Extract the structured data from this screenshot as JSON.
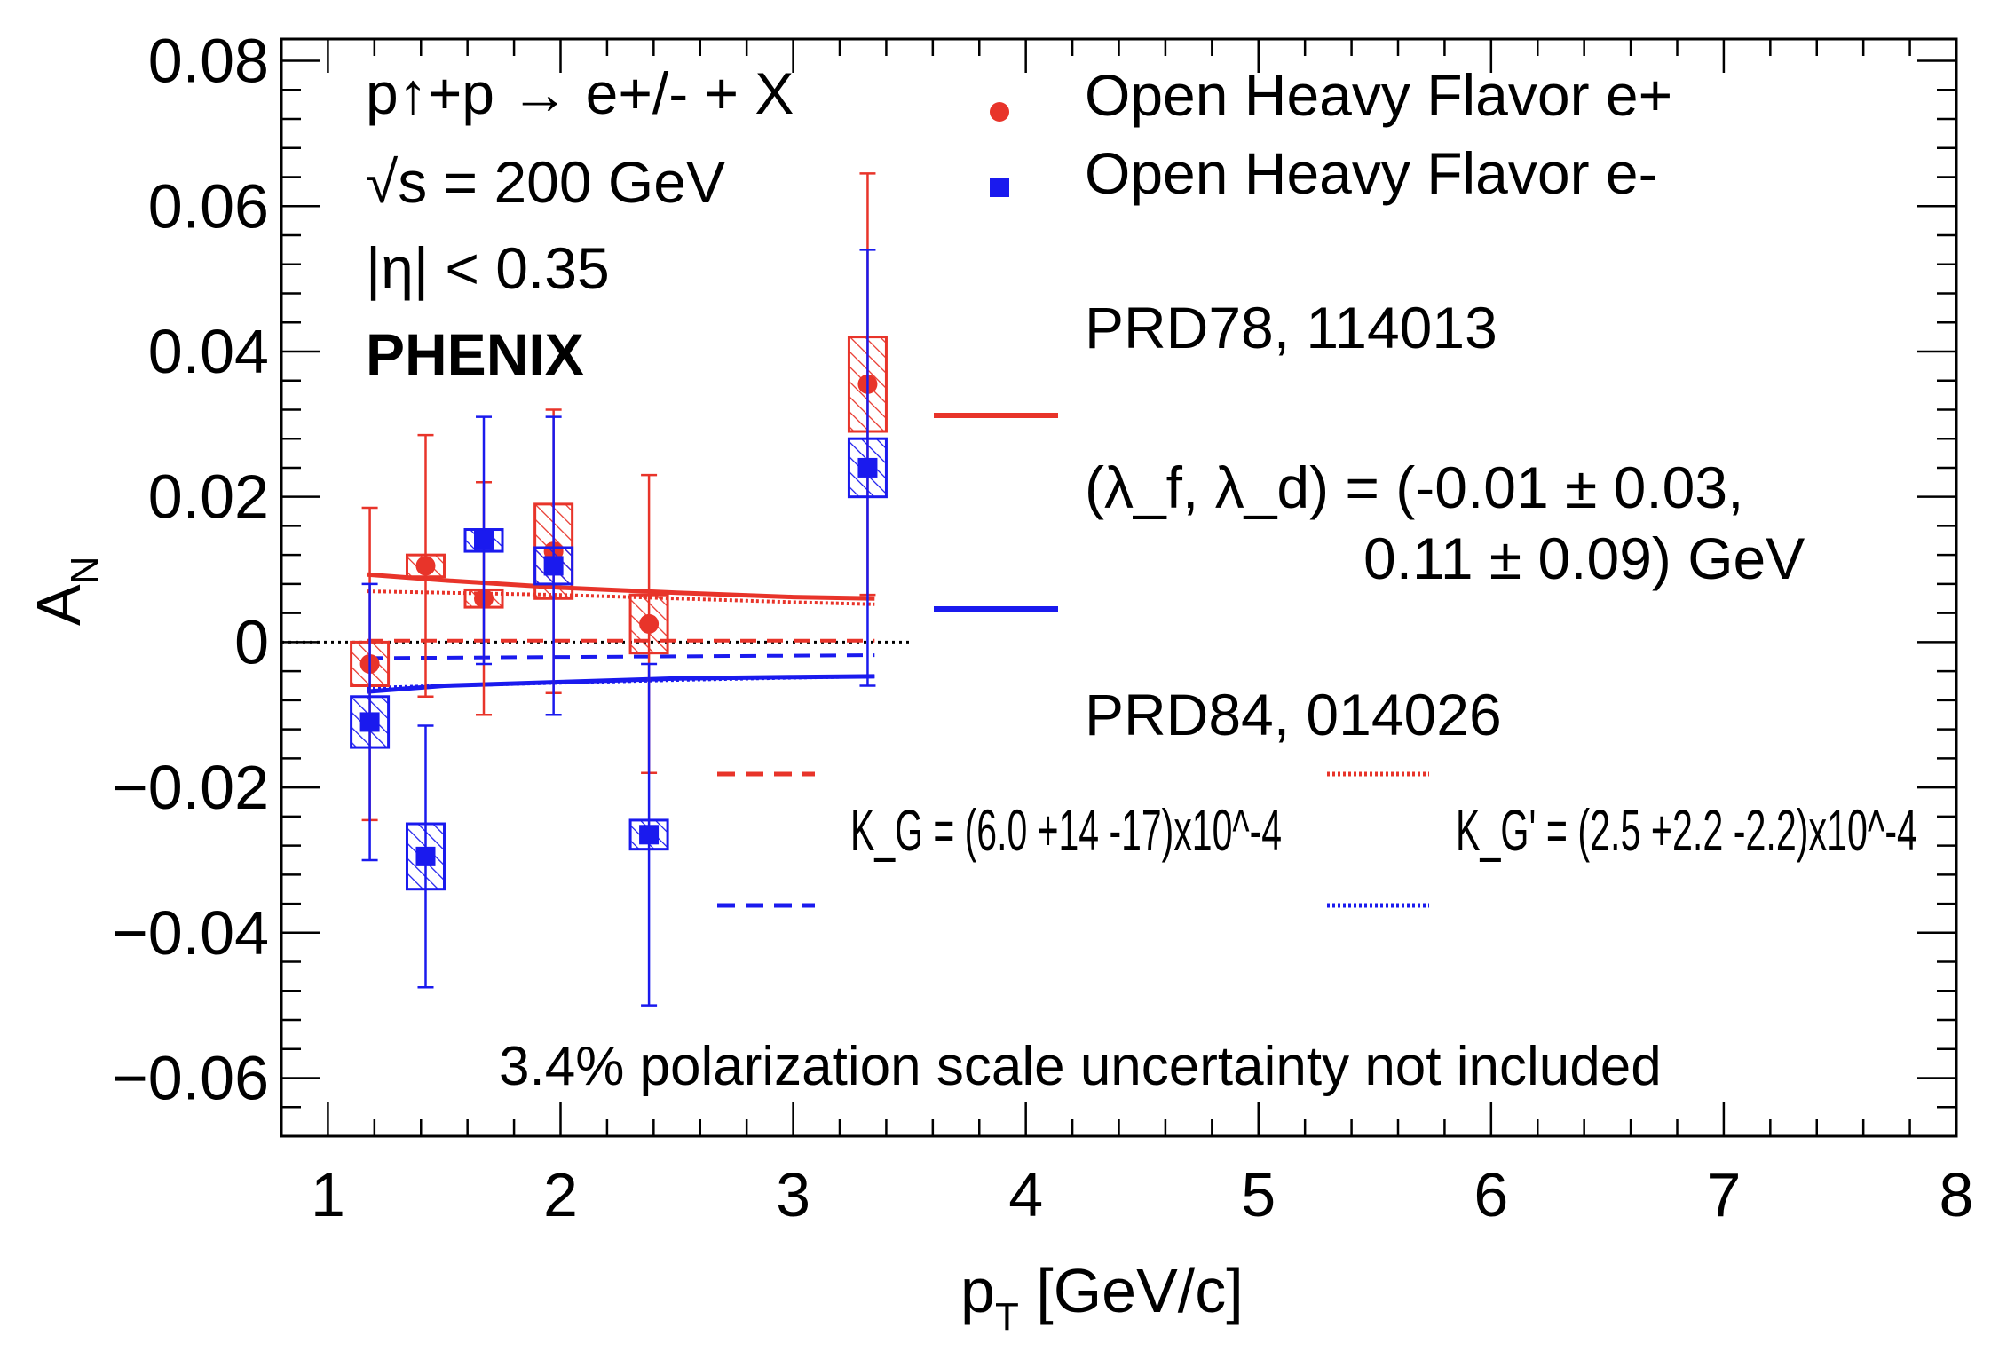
{
  "chart_data": {
    "type": "scatter",
    "xlabel": "p",
    "xlabel_sub": "T",
    "xlabel_unit": " [GeV/c]",
    "ylabel": "A",
    "ylabel_sub": "N",
    "xlim": [
      0.8,
      8
    ],
    "ylim": [
      -0.068,
      0.083
    ],
    "x_ticks": [
      1,
      2,
      3,
      4,
      5,
      6,
      7,
      8
    ],
    "y_ticks": [
      -0.06,
      -0.04,
      -0.02,
      0,
      0.02,
      0.04,
      0.06,
      0.08
    ],
    "y_tick_labels": [
      "−0.06",
      "−0.04",
      "−0.02",
      "0",
      "0.02",
      "0.04",
      "0.06",
      "0.08"
    ],
    "reaction": "p↑+p → e+/- + X",
    "energy": "√s = 200 GeV",
    "eta_cut": "|η| < 0.35",
    "experiment": "PHENIX",
    "note": "3.4% polarization scale uncertainty not included",
    "series": [
      {
        "name": "Open Heavy Flavor e+",
        "color": "#e8342a",
        "marker": "circle",
        "x": [
          1.18,
          1.42,
          1.67,
          1.97,
          2.38,
          3.32
        ],
        "y": [
          -0.003,
          0.0105,
          0.006,
          0.0125,
          0.0025,
          0.0355
        ],
        "stat_err": [
          0.0215,
          0.018,
          0.016,
          0.0195,
          0.0205,
          0.029
        ],
        "syst_err": [
          0.003,
          0.0015,
          0.0012,
          0.0065,
          0.004,
          0.0065
        ]
      },
      {
        "name": "Open Heavy Flavor e-",
        "color": "#1a1aee",
        "marker": "square",
        "x": [
          1.18,
          1.42,
          1.67,
          1.97,
          2.38,
          3.32
        ],
        "y": [
          -0.011,
          -0.0295,
          0.014,
          0.0105,
          -0.0265,
          0.024
        ],
        "stat_err": [
          0.019,
          0.018,
          0.017,
          0.0205,
          0.0235,
          0.03
        ],
        "syst_err": [
          0.0035,
          0.0045,
          0.0015,
          0.0025,
          0.002,
          0.004
        ]
      }
    ],
    "curves": {
      "prd78_label": "PRD78, 114013",
      "prd78_params_line1": "(λ_f, λ_d) = (-0.01 ± 0.03,",
      "prd78_params_line2": "0.11 ± 0.09) GeV",
      "prd84_label": "PRD84, 014026",
      "kg_label": "K_G = (6.0 +14 -17)x10^-4",
      "kgp_label": "K_G' = (2.5 +2.2 -2.2)x10^-4",
      "prd78_eplus": {
        "x": [
          1.17,
          1.5,
          2.0,
          2.5,
          3.0,
          3.35
        ],
        "y": [
          0.0093,
          0.0085,
          0.0075,
          0.0068,
          0.0062,
          0.006
        ]
      },
      "prd78_eminus": {
        "x": [
          1.17,
          1.5,
          2.0,
          2.5,
          3.0,
          3.35
        ],
        "y": [
          -0.0068,
          -0.006,
          -0.0055,
          -0.005,
          -0.0048,
          -0.0047
        ]
      },
      "prd84_kg_eplus": {
        "x": [
          1.17,
          3.35
        ],
        "y": [
          0.0002,
          0.0002
        ]
      },
      "prd84_kg_eminus": {
        "x": [
          1.17,
          3.35
        ],
        "y": [
          -0.0022,
          -0.0018
        ]
      },
      "prd84_kgp_eplus": {
        "x": [
          1.17,
          1.5,
          2.0,
          2.5,
          3.0,
          3.35
        ],
        "y": [
          0.007,
          0.0068,
          0.0065,
          0.006,
          0.0055,
          0.0052
        ]
      },
      "prd84_kgp_eminus": {
        "x": [
          1.17,
          1.5,
          2.0,
          2.5,
          3.0,
          3.35
        ],
        "y": [
          -0.0063,
          -0.006,
          -0.0056,
          -0.0052,
          -0.0049,
          -0.0047
        ]
      },
      "zero_line_xmax": 3.5
    }
  }
}
